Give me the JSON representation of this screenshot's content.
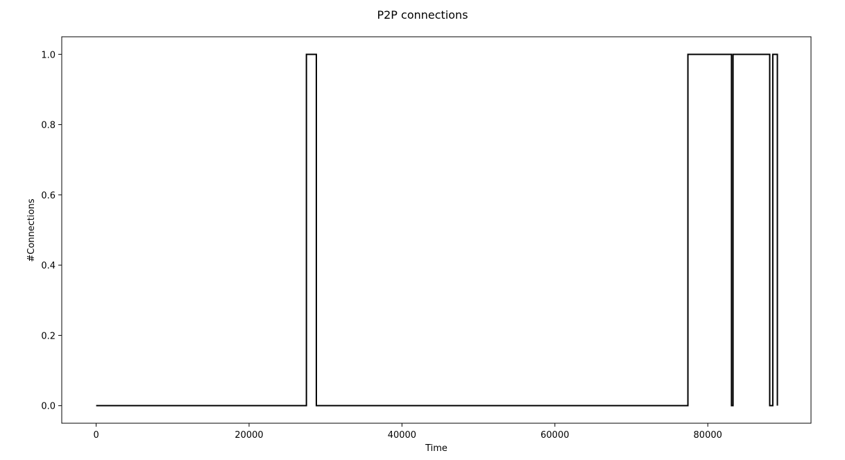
{
  "chart_data": {
    "type": "line",
    "title": "P2P connections",
    "xlabel": "Time",
    "ylabel": "#Connections",
    "xlim": [
      -4500,
      93500
    ],
    "ylim": [
      -0.05,
      1.05
    ],
    "xticks": [
      0,
      20000,
      40000,
      60000,
      80000
    ],
    "xtick_labels": [
      "0",
      "20000",
      "40000",
      "60000",
      "80000"
    ],
    "yticks": [
      0.0,
      0.2,
      0.4,
      0.6,
      0.8,
      1.0
    ],
    "ytick_labels": [
      "0.0",
      "0.2",
      "0.4",
      "0.6",
      "0.8",
      "1.0"
    ],
    "grid": false,
    "step": "post",
    "series": [
      {
        "color": "#000000",
        "x": [
          0,
          27500,
          28800,
          77400,
          83100,
          83300,
          88100,
          88500,
          89100
        ],
        "y": [
          0,
          1,
          0,
          1,
          0,
          1,
          0,
          1,
          0
        ]
      }
    ]
  }
}
